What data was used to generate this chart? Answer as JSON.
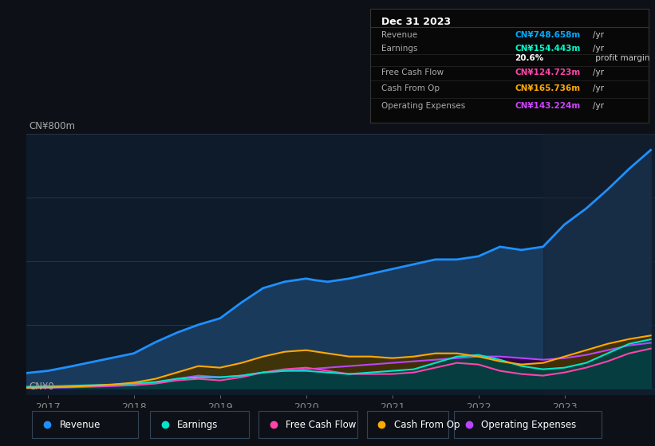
{
  "background_color": "#0d1117",
  "chart_bg_color": "#0d1b2a",
  "title_label": "CN¥800m",
  "zero_label": "CN¥0",
  "x_ticks": [
    2017,
    2018,
    2019,
    2020,
    2021,
    2022,
    2023
  ],
  "y_max": 800,
  "y_min": -20,
  "info_box": {
    "date": "Dec 31 2023",
    "rows": [
      {
        "label": "Revenue",
        "value": "CN¥748.658m",
        "unit": "/yr",
        "color": "#00aaff"
      },
      {
        "label": "Earnings",
        "value": "CN¥154.443m",
        "unit": "/yr",
        "color": "#00ffcc"
      },
      {
        "label": "",
        "value": "20.6%",
        "unit": " profit margin",
        "color": "#ffffff"
      },
      {
        "label": "Free Cash Flow",
        "value": "CN¥124.723m",
        "unit": "/yr",
        "color": "#ff44aa"
      },
      {
        "label": "Cash From Op",
        "value": "CN¥165.736m",
        "unit": "/yr",
        "color": "#ffaa00"
      },
      {
        "label": "Operating Expenses",
        "value": "CN¥143.224m",
        "unit": "/yr",
        "color": "#cc44ff"
      }
    ]
  },
  "series": {
    "revenue": {
      "color": "#1e90ff",
      "fill_color": "#1a3a5c",
      "label": "Revenue",
      "x": [
        2016.75,
        2017.0,
        2017.25,
        2017.5,
        2017.75,
        2018.0,
        2018.25,
        2018.5,
        2018.75,
        2019.0,
        2019.25,
        2019.5,
        2019.75,
        2020.0,
        2020.1,
        2020.25,
        2020.5,
        2020.75,
        2021.0,
        2021.25,
        2021.5,
        2021.75,
        2022.0,
        2022.25,
        2022.5,
        2022.75,
        2023.0,
        2023.25,
        2023.5,
        2023.75,
        2024.0
      ],
      "y": [
        48,
        55,
        68,
        82,
        96,
        110,
        145,
        175,
        200,
        220,
        270,
        315,
        335,
        345,
        340,
        335,
        345,
        360,
        375,
        390,
        405,
        405,
        415,
        445,
        435,
        445,
        515,
        565,
        625,
        690,
        749
      ]
    },
    "earnings": {
      "color": "#00e5cc",
      "fill_color": "#004444",
      "label": "Earnings",
      "x": [
        2016.75,
        2017.0,
        2017.25,
        2017.5,
        2017.75,
        2018.0,
        2018.25,
        2018.5,
        2018.75,
        2019.0,
        2019.25,
        2019.5,
        2019.75,
        2020.0,
        2020.25,
        2020.5,
        2020.75,
        2021.0,
        2021.25,
        2021.5,
        2021.75,
        2022.0,
        2022.25,
        2022.5,
        2022.75,
        2023.0,
        2023.25,
        2023.5,
        2023.75,
        2024.0
      ],
      "y": [
        5,
        6,
        8,
        10,
        12,
        15,
        20,
        30,
        35,
        35,
        40,
        50,
        55,
        55,
        50,
        45,
        50,
        55,
        60,
        80,
        100,
        105,
        90,
        70,
        60,
        65,
        80,
        110,
        140,
        154
      ]
    },
    "free_cash_flow": {
      "color": "#ff44aa",
      "fill_color": "#440022",
      "label": "Free Cash Flow",
      "x": [
        2016.75,
        2017.0,
        2017.25,
        2017.5,
        2017.75,
        2018.0,
        2018.25,
        2018.5,
        2018.75,
        2019.0,
        2019.25,
        2019.5,
        2019.75,
        2020.0,
        2020.25,
        2020.5,
        2020.75,
        2021.0,
        2021.25,
        2021.5,
        2021.75,
        2022.0,
        2022.25,
        2022.5,
        2022.75,
        2023.0,
        2023.25,
        2023.5,
        2023.75,
        2024.0
      ],
      "y": [
        3,
        4,
        5,
        7,
        9,
        10,
        15,
        25,
        30,
        25,
        35,
        50,
        60,
        65,
        55,
        45,
        45,
        45,
        50,
        65,
        80,
        75,
        55,
        45,
        40,
        50,
        65,
        85,
        110,
        125
      ]
    },
    "cash_from_op": {
      "color": "#ffaa00",
      "fill_color": "#443300",
      "label": "Cash From Op",
      "x": [
        2016.75,
        2017.0,
        2017.25,
        2017.5,
        2017.75,
        2018.0,
        2018.25,
        2018.5,
        2018.75,
        2019.0,
        2019.25,
        2019.5,
        2019.75,
        2020.0,
        2020.25,
        2020.5,
        2020.75,
        2021.0,
        2021.25,
        2021.5,
        2021.75,
        2022.0,
        2022.25,
        2022.5,
        2022.75,
        2023.0,
        2023.25,
        2023.5,
        2023.75,
        2024.0
      ],
      "y": [
        2,
        3,
        5,
        8,
        12,
        18,
        30,
        50,
        70,
        65,
        80,
        100,
        115,
        120,
        110,
        100,
        100,
        95,
        100,
        110,
        110,
        100,
        85,
        75,
        80,
        100,
        120,
        140,
        155,
        166
      ]
    },
    "operating_expenses": {
      "color": "#bb44ff",
      "fill_color": "#330044",
      "label": "Operating Expenses",
      "x": [
        2016.75,
        2017.0,
        2017.25,
        2017.5,
        2017.75,
        2018.0,
        2018.25,
        2018.5,
        2018.75,
        2019.0,
        2019.25,
        2019.5,
        2019.75,
        2020.0,
        2020.25,
        2020.5,
        2020.75,
        2021.0,
        2021.25,
        2021.5,
        2021.75,
        2022.0,
        2022.25,
        2022.5,
        2022.75,
        2023.0,
        2023.25,
        2023.5,
        2023.75,
        2024.0
      ],
      "y": [
        1,
        2,
        3,
        5,
        7,
        10,
        18,
        30,
        40,
        35,
        40,
        50,
        55,
        60,
        65,
        70,
        75,
        80,
        85,
        90,
        95,
        100,
        100,
        95,
        90,
        95,
        105,
        120,
        135,
        143
      ]
    }
  },
  "legend": [
    {
      "label": "Revenue",
      "color": "#1e90ff"
    },
    {
      "label": "Earnings",
      "color": "#00e5cc"
    },
    {
      "label": "Free Cash Flow",
      "color": "#ff44aa"
    },
    {
      "label": "Cash From Op",
      "color": "#ffaa00"
    },
    {
      "label": "Operating Expenses",
      "color": "#bb44ff"
    }
  ]
}
